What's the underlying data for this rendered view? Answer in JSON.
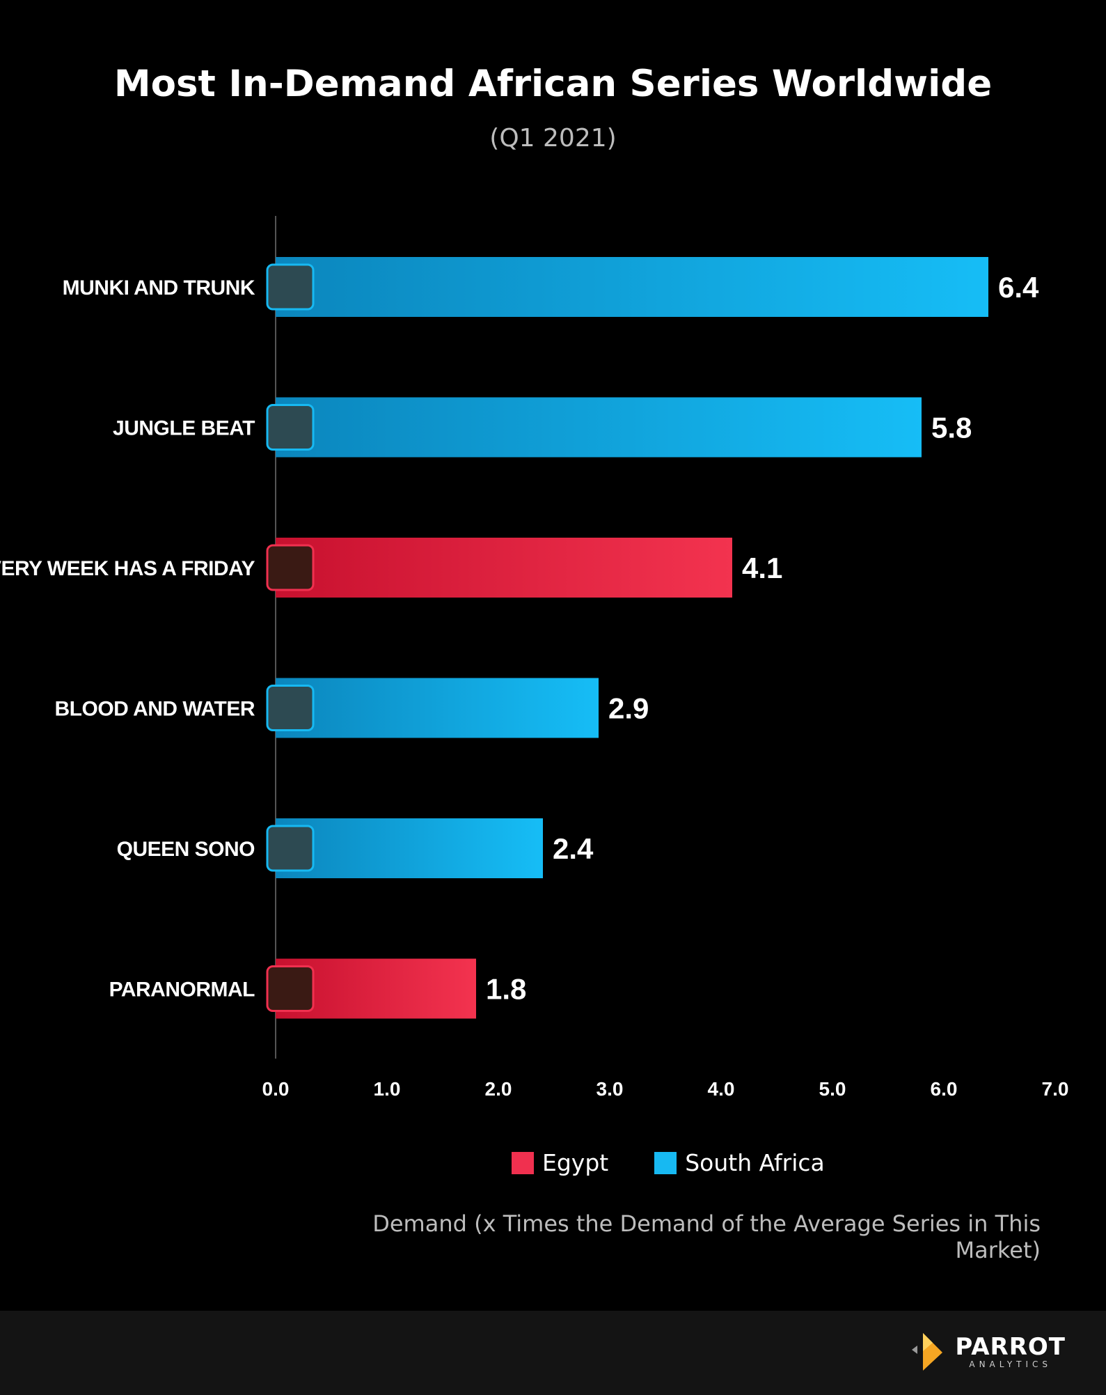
{
  "chart_data": {
    "type": "bar",
    "orientation": "horizontal",
    "title": "Most In-Demand African Series Worldwide",
    "subtitle": "(Q1 2021)",
    "xlabel": "Demand (x Times the Demand of the Average Series in This Market)",
    "ylabel": "",
    "xlim": [
      0,
      7
    ],
    "ticks": [
      "0.0",
      "1.0",
      "2.0",
      "3.0",
      "4.0",
      "5.0",
      "6.0",
      "7.0"
    ],
    "categories": [
      "MUNKI AND TRUNK",
      "JUNGLE BEAT",
      "EVERY WEEK HAS A FRIDAY",
      "BLOOD AND WATER",
      "QUEEN SONO",
      "PARANORMAL"
    ],
    "values": [
      6.4,
      5.8,
      4.1,
      2.9,
      2.4,
      1.8
    ],
    "value_labels": [
      "6.4",
      "5.8",
      "4.1",
      "2.9",
      "2.4",
      "1.8"
    ],
    "markets": [
      "South Africa",
      "South Africa",
      "Egypt",
      "South Africa",
      "South Africa",
      "Egypt"
    ],
    "legend": [
      {
        "name": "Egypt",
        "color": "#f0304f"
      },
      {
        "name": "South Africa",
        "color": "#17b9f2"
      }
    ],
    "legend_position": "bottom",
    "grid": false
  },
  "footer": {
    "brand": "PARROT",
    "brand_sub": "ANALYTICS"
  }
}
